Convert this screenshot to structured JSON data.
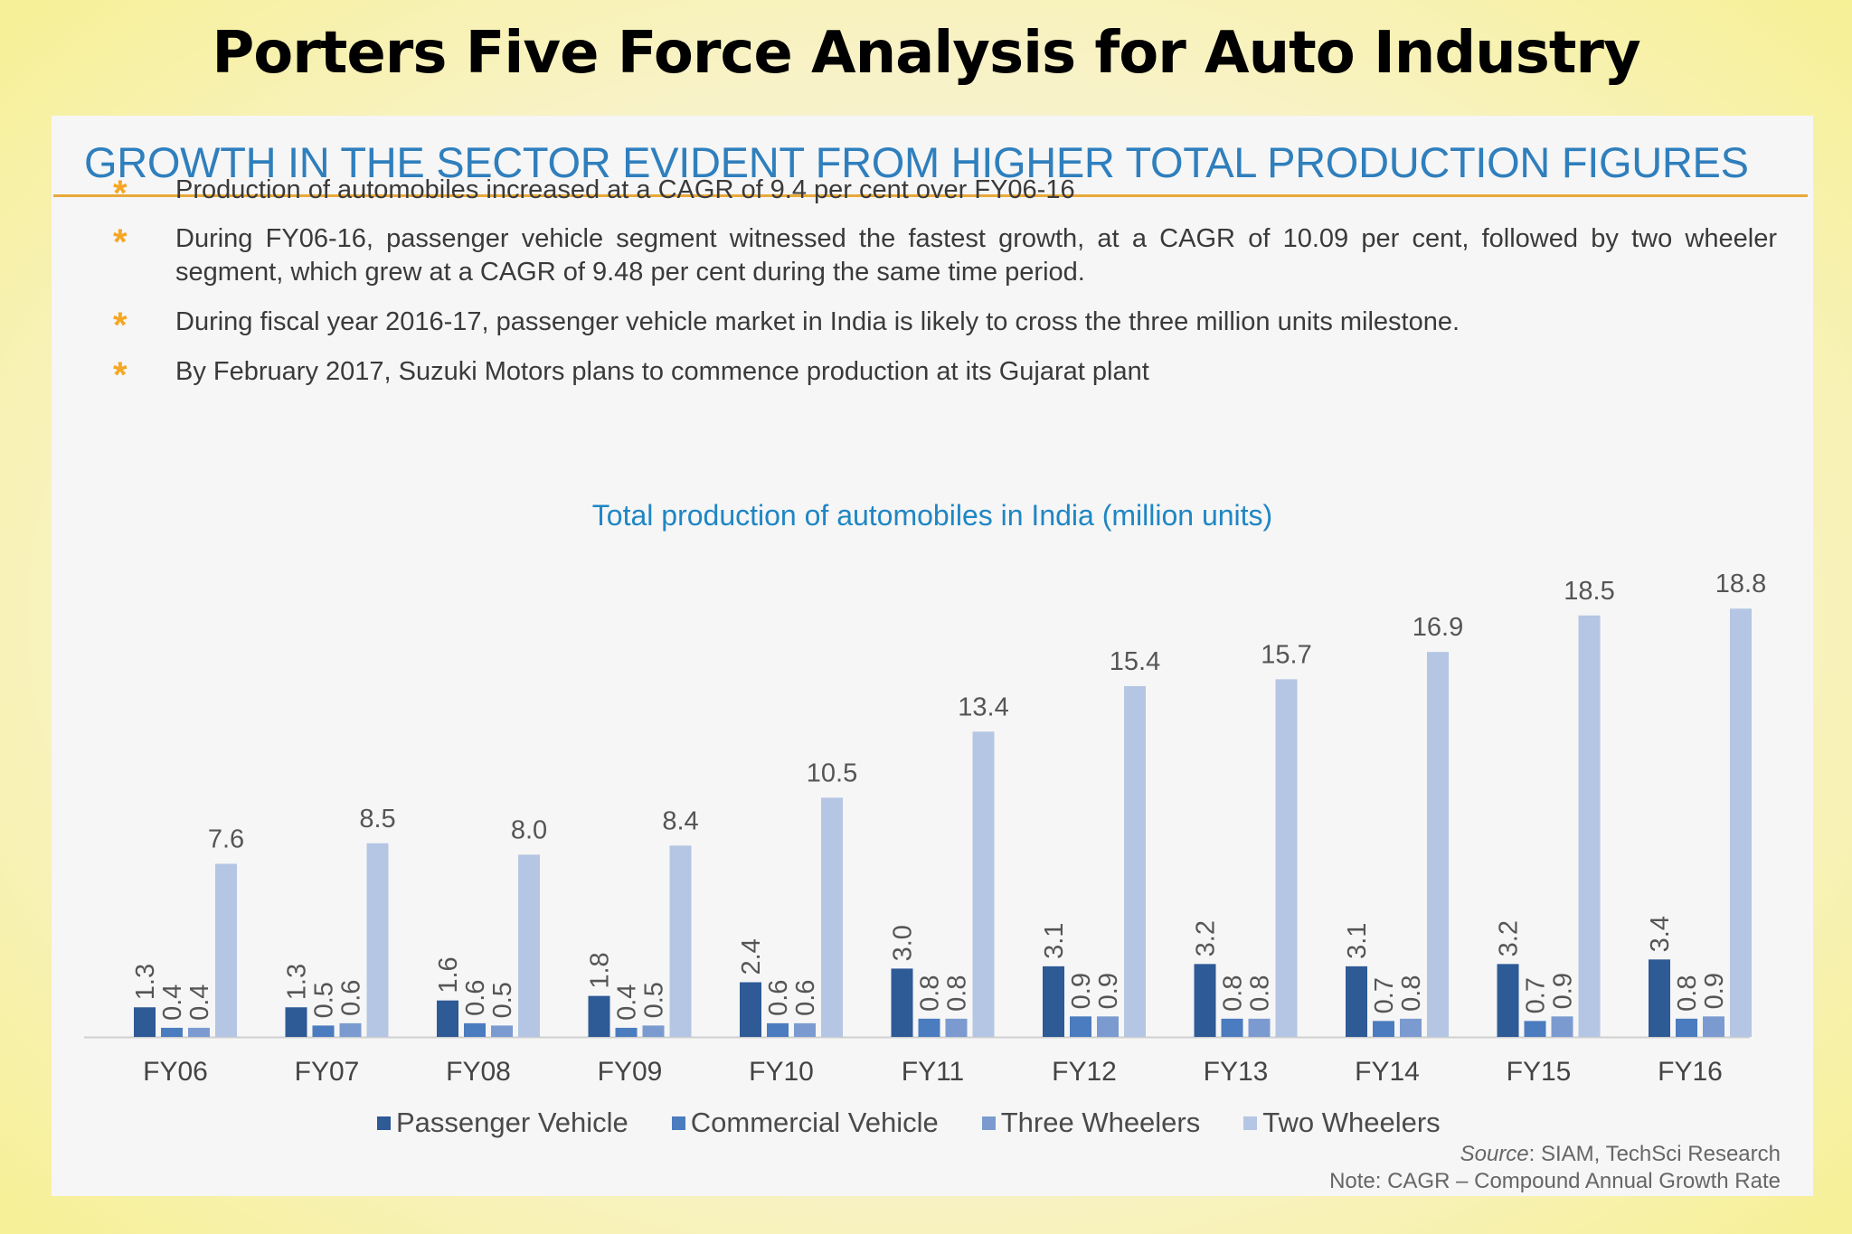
{
  "slide": {
    "title": "Porters Five Force Analysis for Auto Industry"
  },
  "panel": {
    "heading": "GROWTH IN THE SECTOR EVIDENT FROM HIGHER TOTAL PRODUCTION FIGURES",
    "bullet_icon": "asterisk-icon",
    "bullets": [
      "Production of automobiles increased at a CAGR of 9.4 per cent over FY06-16",
      "During FY06-16, passenger vehicle segment witnessed the fastest growth, at a CAGR of 10.09 per cent, followed by two wheeler segment, which grew at a CAGR of 9.48 per cent during the same time period.",
      "During fiscal year 2016-17, passenger vehicle market in India is likely to cross the three million units milestone.",
      "By February 2017, Suzuki Motors plans to commence production at its Gujarat plant"
    ],
    "source_label": "Source",
    "source_text": ": SIAM, TechSci Research",
    "note": "Note: CAGR – Compound Annual Growth Rate"
  },
  "colors": {
    "heading": "#2f7fbd",
    "rule": "#e8a93a",
    "bullet_star": "#f5a623",
    "chart_title": "#1f86c4"
  },
  "chart_data": {
    "type": "bar",
    "title": "Total production of automobiles in India (million units)",
    "xlabel": "",
    "ylabel": "",
    "ylim": [
      0,
      20
    ],
    "grid": false,
    "legend_position": "bottom",
    "categories": [
      "FY06",
      "FY07",
      "FY08",
      "FY09",
      "FY10",
      "FY11",
      "FY12",
      "FY13",
      "FY14",
      "FY15",
      "FY16"
    ],
    "series": [
      {
        "name": "Passenger Vehicle",
        "color": "#2e5a96",
        "values": [
          1.3,
          1.3,
          1.6,
          1.8,
          2.4,
          3.0,
          3.1,
          3.2,
          3.1,
          3.2,
          3.4
        ],
        "labels": [
          "1.3",
          "1.3",
          "1.6",
          "1.8",
          "2.4",
          "3.0",
          "3.1",
          "3.2",
          "3.1",
          "3.2",
          "3.4"
        ]
      },
      {
        "name": "Commercial Vehicle",
        "color": "#4a7cbf",
        "values": [
          0.4,
          0.5,
          0.6,
          0.4,
          0.6,
          0.8,
          0.9,
          0.8,
          0.7,
          0.7,
          0.8
        ],
        "labels": [
          "0.4",
          "0.5",
          "0.6",
          "0.4",
          "0.6",
          "0.8",
          "0.9",
          "0.8",
          "0.7",
          "0.7",
          "0.8"
        ]
      },
      {
        "name": "Three Wheelers",
        "color": "#7b9bd0",
        "values": [
          0.4,
          0.6,
          0.5,
          0.5,
          0.6,
          0.8,
          0.9,
          0.8,
          0.8,
          0.9,
          0.9
        ],
        "labels": [
          "0.4",
          "0.6",
          "0.5",
          "0.5",
          "0.6",
          "0.8",
          "0.9",
          "0.8",
          "0.8",
          "0.9",
          "0.9"
        ]
      },
      {
        "name": "Two Wheelers",
        "color": "#b4c6e3",
        "values": [
          7.6,
          8.5,
          8.0,
          8.4,
          10.5,
          13.4,
          15.4,
          15.7,
          16.9,
          18.5,
          18.8
        ],
        "labels": [
          "7.6",
          "8.5",
          "8.0",
          "8.4",
          "10.5",
          "13.4",
          "15.4",
          "15.7",
          "16.9",
          "18.5",
          "18.8"
        ]
      }
    ]
  }
}
